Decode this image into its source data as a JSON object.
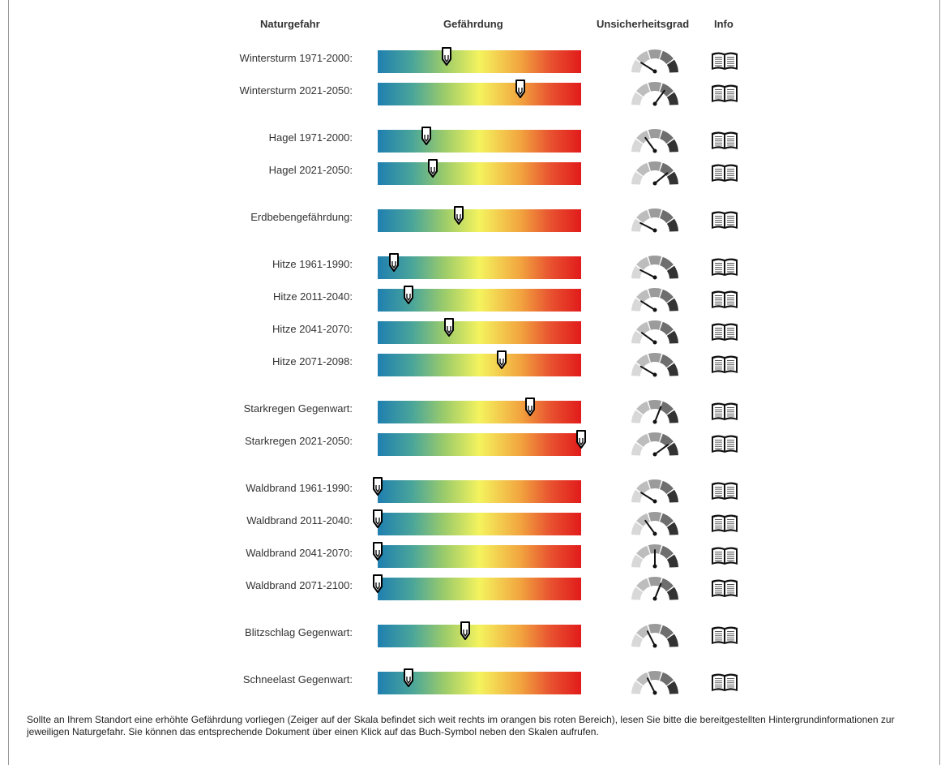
{
  "headers": {
    "naturgefahr": "Naturgefahr",
    "gefaehrdung": "Gefährdung",
    "unsicherheitsgrad": "Unsicherheitsgrad",
    "info": "Info"
  },
  "rows": [
    {
      "label": "Wintersturm 1971-2000:",
      "hazard_level": 0.34,
      "uncertainty": 0.18
    },
    {
      "label": "Wintersturm 2021-2050:",
      "hazard_level": 0.7,
      "uncertainty": 0.7
    },
    {
      "label": "Hagel 1971-2000:",
      "hazard_level": 0.24,
      "uncertainty": 0.3
    },
    {
      "label": "Hagel 2021-2050:",
      "hazard_level": 0.27,
      "uncertainty": 0.78
    },
    {
      "label": "Erdbebengefährdung:",
      "hazard_level": 0.4,
      "uncertainty": 0.15
    },
    {
      "label": "Hitze 1961-1990:",
      "hazard_level": 0.08,
      "uncertainty": 0.15
    },
    {
      "label": "Hitze 2011-2040:",
      "hazard_level": 0.15,
      "uncertainty": 0.18
    },
    {
      "label": "Hitze 2041-2070:",
      "hazard_level": 0.35,
      "uncertainty": 0.2
    },
    {
      "label": "Hitze 2071-2098:",
      "hazard_level": 0.61,
      "uncertainty": 0.17
    },
    {
      "label": "Starkregen Gegenwart:",
      "hazard_level": 0.75,
      "uncertainty": 0.62
    },
    {
      "label": "Starkregen 2021-2050:",
      "hazard_level": 1.0,
      "uncertainty": 0.8
    },
    {
      "label": "Waldbrand 1961-1990:",
      "hazard_level": 0.0,
      "uncertainty": 0.18
    },
    {
      "label": "Waldbrand 2011-2040:",
      "hazard_level": 0.0,
      "uncertainty": 0.3
    },
    {
      "label": "Waldbrand 2041-2070:",
      "hazard_level": 0.0,
      "uncertainty": 0.5
    },
    {
      "label": "Waldbrand 2071-2100:",
      "hazard_level": 0.0,
      "uncertainty": 0.62
    },
    {
      "label": "Blitzschlag Gegenwart:",
      "hazard_level": 0.43,
      "uncertainty": 0.35
    },
    {
      "label": "Schneelast Gegenwart:",
      "hazard_level": 0.15,
      "uncertainty": 0.35
    }
  ],
  "footer_text": "Sollte an Ihrem Standort eine erhöhte Gefährdung vorliegen (Zeiger auf der Skala befindet sich weit rechts im orangen bis roten Bereich), lesen Sie bitte die bereitgestellten Hintergrundinformationen zur jeweiligen Naturgefahr. Sie können das entsprechende Dokument über einen Klick auf das Buch-Symbol neben den Skalen aufrufen.",
  "icons": {
    "pointer": "scale-pointer-icon",
    "gauge": "uncertainty-gauge-icon",
    "info": "book-icon"
  },
  "colors": {
    "scale_low": "#1f7fb0",
    "scale_mid": "#f4f35e",
    "scale_high": "#e11b1b"
  }
}
